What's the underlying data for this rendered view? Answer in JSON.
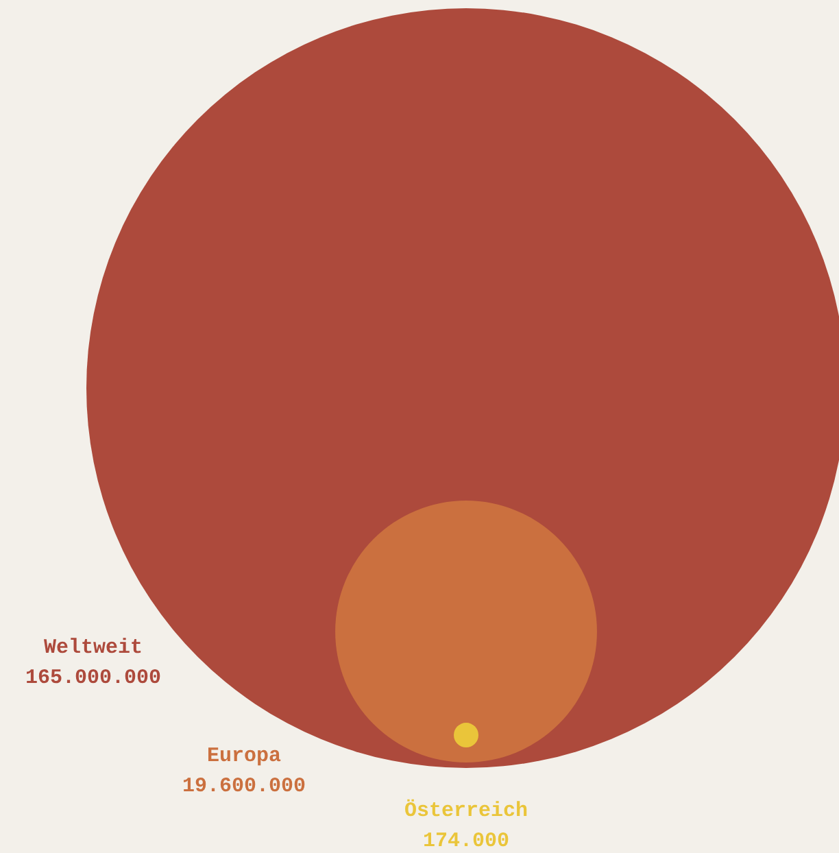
{
  "chart_data": {
    "type": "other",
    "categories": [
      "Weltweit",
      "Europa",
      "Österreich"
    ],
    "values": [
      165000000,
      19600000,
      174000
    ],
    "colors": [
      "#ad4a3c",
      "#cb703f",
      "#eac53a"
    ],
    "value_labels": [
      "165.000.000",
      "19.600.000",
      "174.000"
    ]
  }
}
